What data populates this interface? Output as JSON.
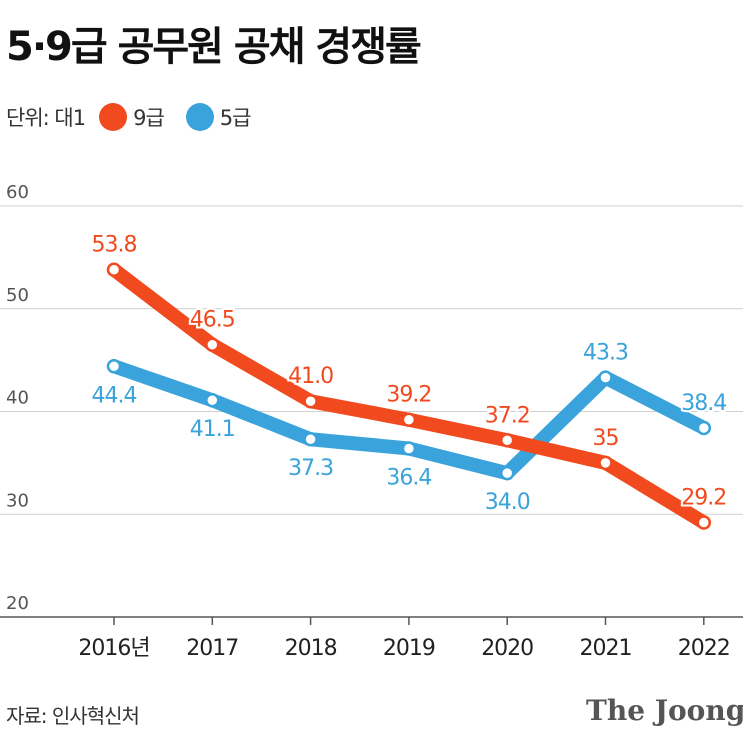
{
  "title": "5·9급 공무원 공채 경쟁률",
  "legend": {
    "unit_label": "단위: 대1"
  },
  "source": "자료: 인사혁신처",
  "brand": "The Joong/",
  "chart_data": {
    "type": "line",
    "title": "5·9급 공무원 공채 경쟁률",
    "categories": [
      "2016년",
      "2017",
      "2018",
      "2019",
      "2020",
      "2021",
      "2022"
    ],
    "series": [
      {
        "name": "9급",
        "color": "#f04a1e",
        "values": [
          53.8,
          46.5,
          41.0,
          39.2,
          37.2,
          35,
          29.2
        ],
        "labels": [
          "53.8",
          "46.5",
          "41.0",
          "39.2",
          "37.2",
          "35",
          "29.2"
        ]
      },
      {
        "name": "5급",
        "color": "#3aa3dc",
        "values": [
          44.4,
          41.1,
          37.3,
          36.4,
          34.0,
          43.3,
          38.4
        ],
        "labels": [
          "44.4",
          "41.1",
          "37.3",
          "36.4",
          "34.0",
          "43.3",
          "38.4"
        ]
      }
    ],
    "yticks": [
      "20",
      "30",
      "40",
      "50",
      "60"
    ],
    "ylim": [
      20,
      60
    ],
    "grid": true
  }
}
